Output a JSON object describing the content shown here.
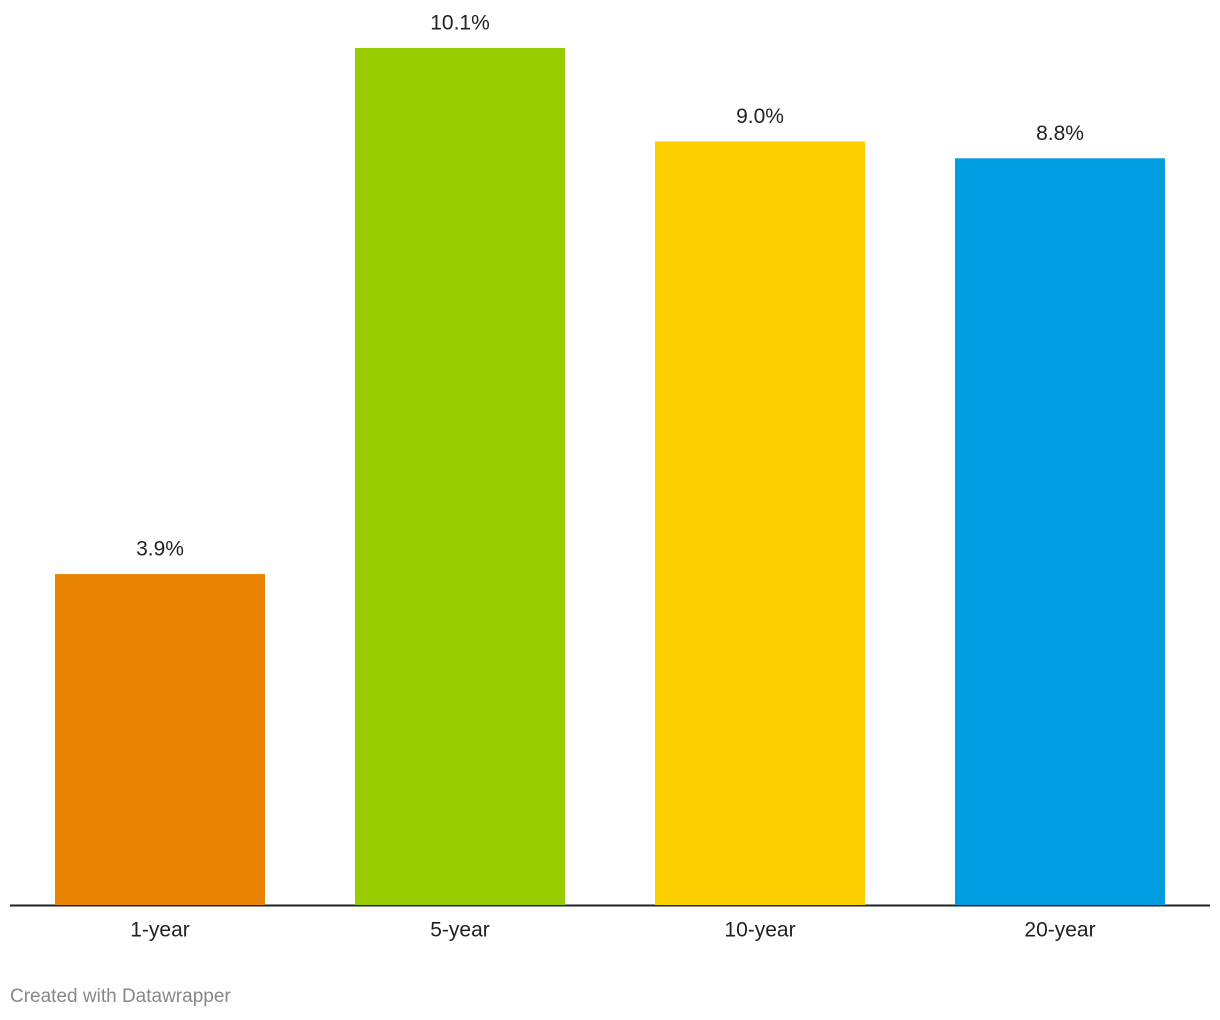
{
  "chart_data": {
    "type": "bar",
    "categories": [
      "1-year",
      "5-year",
      "10-year",
      "20-year"
    ],
    "values": [
      3.9,
      10.1,
      9.0,
      8.8
    ],
    "value_labels": [
      "3.9%",
      "10.1%",
      "9.0%",
      "8.8%"
    ],
    "colors": [
      "#e88300",
      "#99cc00",
      "#ffd000",
      "#009de0"
    ],
    "credit": "Created with Datawrapper"
  }
}
